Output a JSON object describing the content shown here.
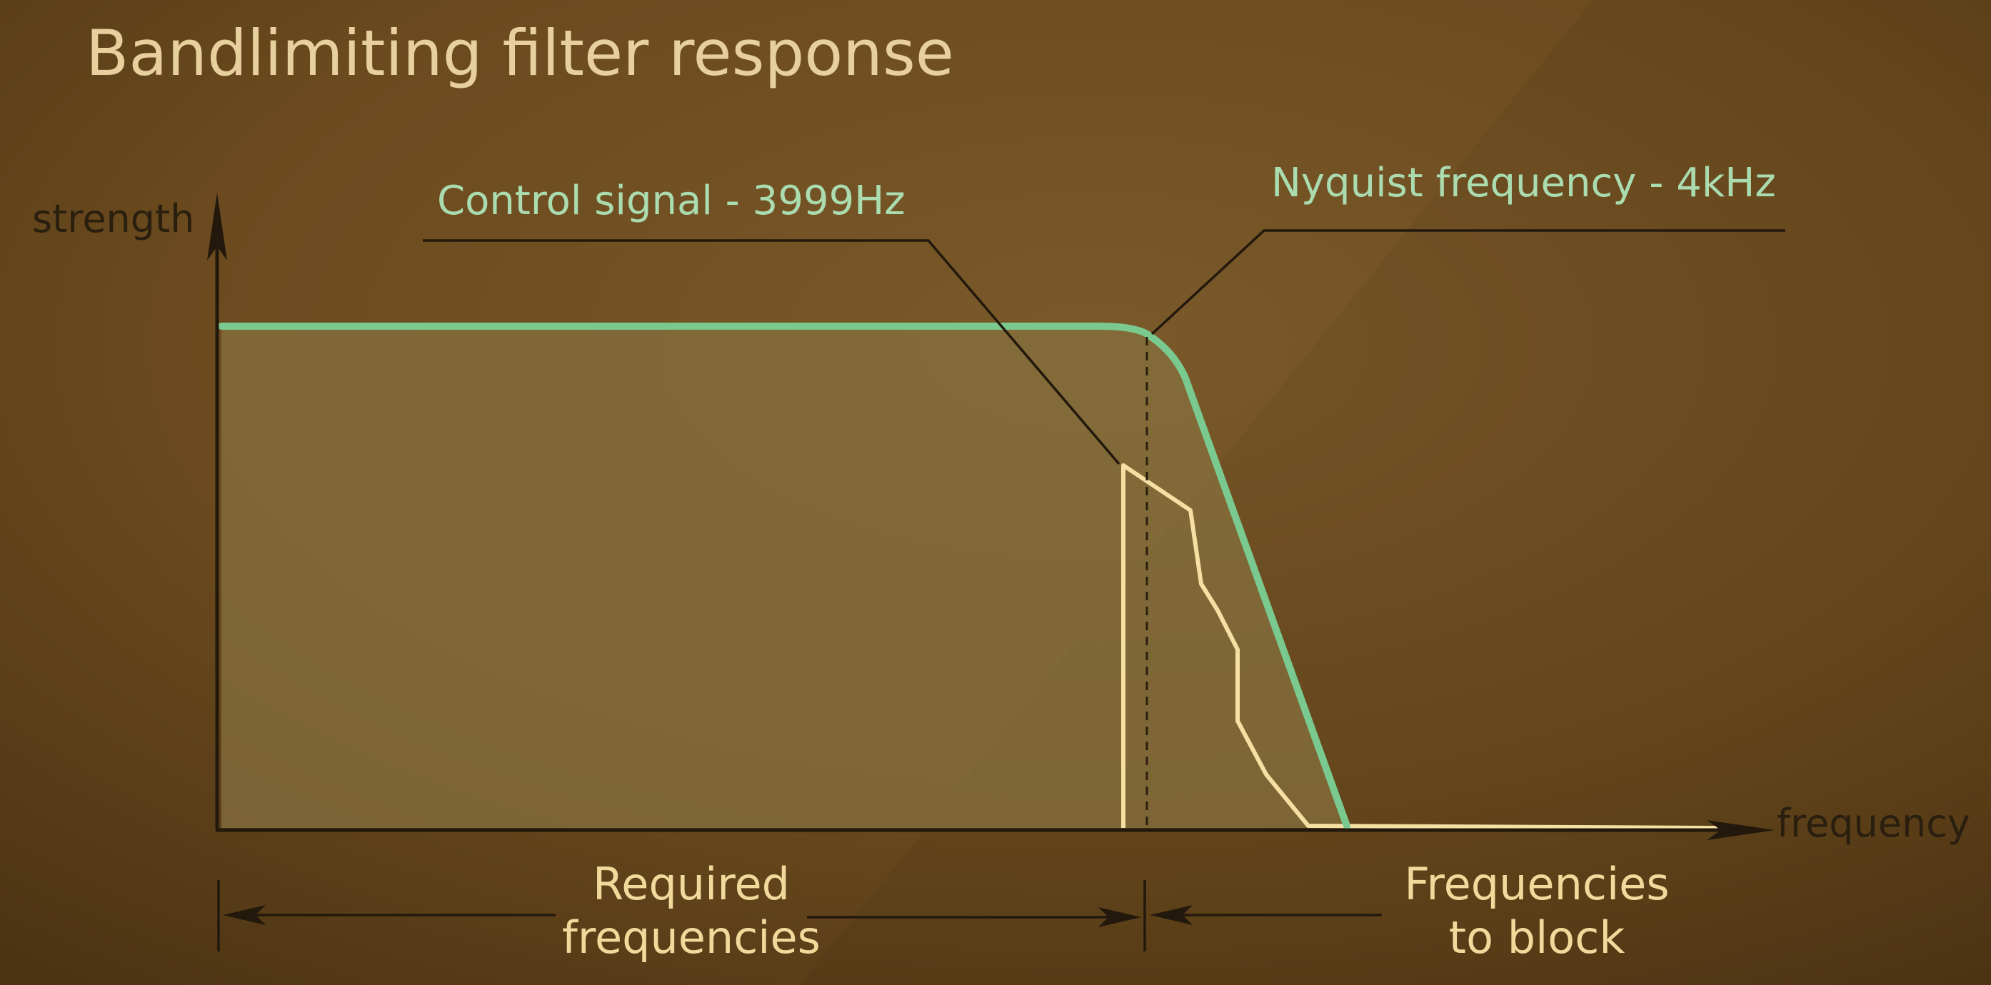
{
  "title": "Bandlimiting filter response",
  "axes": {
    "y_label": "strength",
    "x_label": "frequency"
  },
  "annotations": {
    "control_signal": "Control signal - 3999Hz",
    "nyquist": "Nyquist frequency - 4kHz"
  },
  "ranges": {
    "required": [
      "Required",
      "frequencies"
    ],
    "block": [
      "Frequencies",
      "to block"
    ]
  },
  "colors": {
    "background": "#6e4e22",
    "filter_curve": "#7ac98f",
    "filter_fill": "#80693c",
    "signal_curve": "#f6dfa3",
    "axis": "#22190c"
  }
}
